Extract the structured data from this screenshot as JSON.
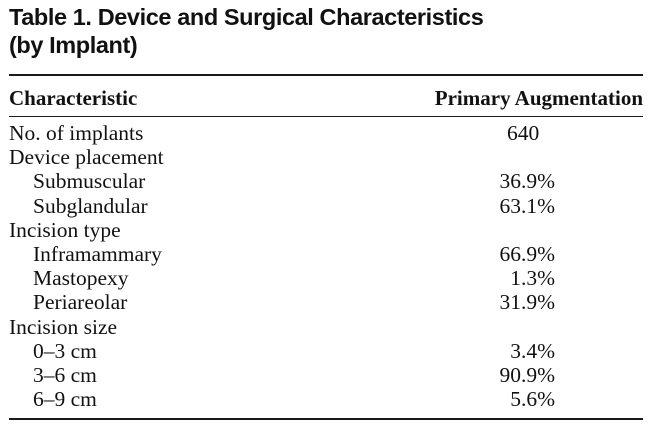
{
  "caption": {
    "line1": "Table 1.  Device and Surgical Characteristics",
    "line2": "(by Implant)"
  },
  "header": {
    "characteristic": "Characteristic",
    "primary_augmentation": "Primary Augmentation"
  },
  "rows": [
    {
      "label": "No. of implants",
      "value": "640"
    },
    {
      "label": "Device placement",
      "value": ""
    },
    {
      "label": "Submuscular",
      "value": "36.9%"
    },
    {
      "label": "Subglandular",
      "value": "63.1%"
    },
    {
      "label": "Incision type",
      "value": ""
    },
    {
      "label": "Inframammary",
      "value": "66.9%"
    },
    {
      "label": "Mastopexy",
      "value": "1.3%"
    },
    {
      "label": "Periareolar",
      "value": "31.9%"
    },
    {
      "label": "Incision size",
      "value": ""
    },
    {
      "label": "0–3 cm",
      "value": "3.4%"
    },
    {
      "label": "3–6 cm",
      "value": "90.9%"
    },
    {
      "label": "6–9 cm",
      "value": "5.6%"
    }
  ]
}
